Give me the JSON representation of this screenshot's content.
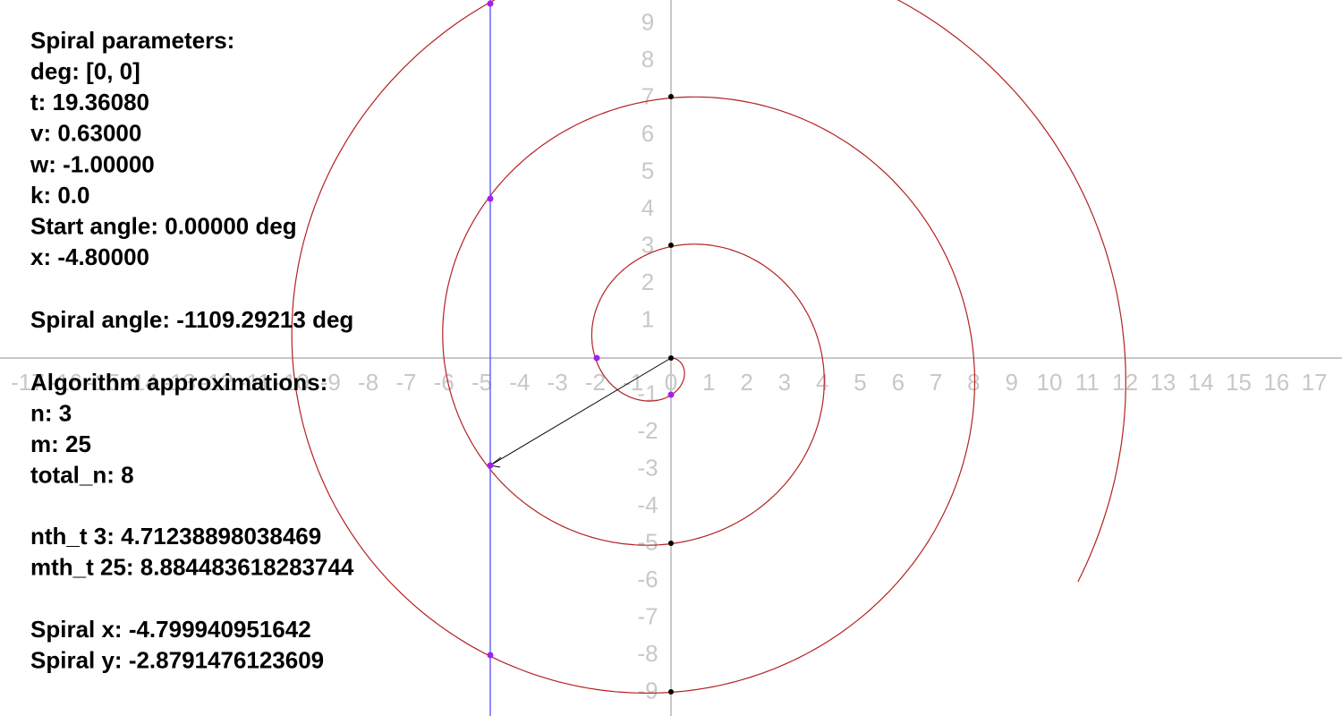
{
  "axes": {
    "x_labels": [
      -17,
      -16,
      -15,
      -14,
      -13,
      -12,
      -11,
      -10,
      -9,
      -8,
      -7,
      -6,
      -5,
      -4,
      -3,
      -2,
      -1,
      0,
      1,
      2,
      3,
      4,
      5,
      6,
      7,
      8,
      9,
      10,
      11,
      12,
      13,
      14,
      15,
      16,
      17
    ],
    "y_labels": [
      9,
      8,
      7,
      6,
      5,
      4,
      3,
      2,
      1,
      -1,
      -2,
      -3,
      -4,
      -5,
      -6,
      -7,
      -8,
      -9
    ]
  },
  "panel": {
    "parameters": [
      "Spiral parameters:",
      "deg: [0, 0]",
      "t: 19.36080",
      "v: 0.63000",
      "w: -1.00000",
      "k: 0.0",
      "Start angle: 0.00000 deg",
      "x: -4.80000"
    ],
    "angle": [
      "Spiral angle: -1109.29213 deg"
    ],
    "algorithm": [
      "Algorithm approximations:",
      "n: 3",
      "m: 25",
      "total_n: 8"
    ],
    "nth": [
      "nth_t 3: 4.71238898038469",
      "mth_t 25: 8.884483618283744"
    ],
    "result": [
      "Spiral x: -4.799940951642",
      "Spiral y: -2.8791476123609"
    ]
  }
}
